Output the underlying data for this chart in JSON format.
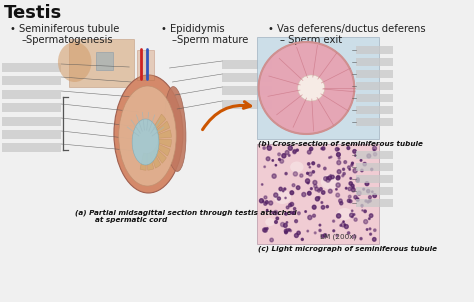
{
  "title": "Testis",
  "bg_color": "#f0f0f0",
  "white": "#ffffff",
  "bullet1_main": "• Seminiferous tubule",
  "bullet1_sub": "–Spermatogenesis",
  "bullet2_main": "• Epididymis",
  "bullet2_sub": "–Sperm mature",
  "bullet3_main": "• Vas deferens/ductus deferens",
  "bullet3_sub": "– Sperm exit",
  "caption_a": "(a) Partial midsagittal section through testis attached\n        at spermatic cord",
  "caption_b": "(b) Cross-section of seminiferous tubule",
  "caption_c": "(c) Light micrograph of seminiferous tubule",
  "lm_label": "LM (200x)",
  "title_fontsize": 13,
  "text_fontsize": 7.2,
  "caption_fontsize": 5.2,
  "label_fontsize": 4.8,
  "gray_box": "#c8c8c8",
  "testis_outer_color": "#d4896a",
  "testis_inner_color": "#e8b090",
  "epididymis_color": "#c07860",
  "tubule_fill": "#d4a870",
  "cavity_color": "#9eccd8",
  "cs_bg_color": "#c8dde8",
  "cs_fill": "#e8a0b0",
  "cs_inner": "#f8f0e8",
  "cs_septa": "#c87080",
  "lm_bg": "#f0c8d0",
  "lm_dot": "#552266",
  "lm_lumen": "#f8e8e8",
  "arrow_color": "#cc5500",
  "body_color": "#d4a070"
}
